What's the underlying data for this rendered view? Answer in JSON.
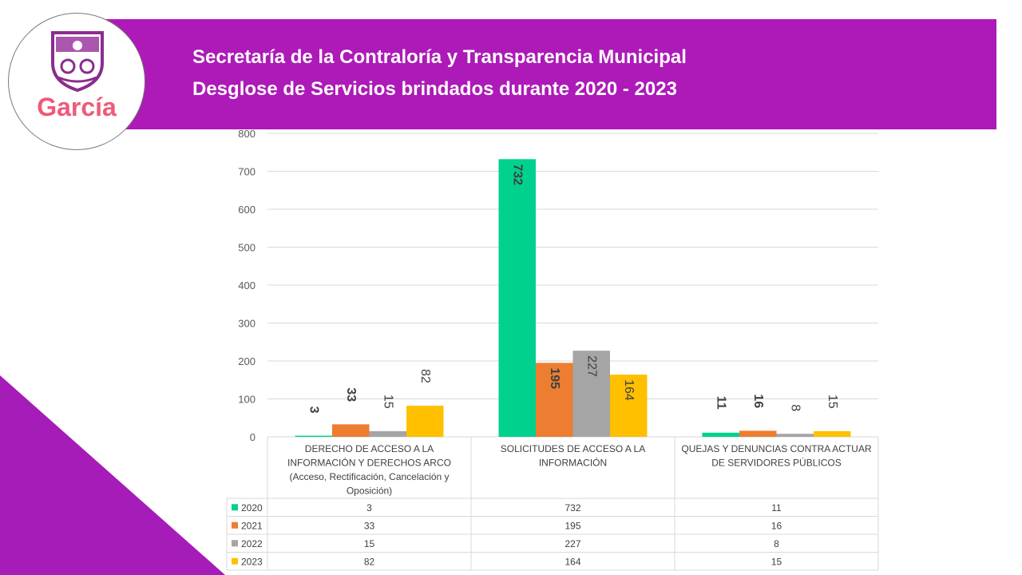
{
  "header": {
    "title_line1": "Secretaría de la Contraloría y Transparencia Municipal",
    "title_line2": "Desglose de Servicios brindados durante 2020 - 2023"
  },
  "logo": {
    "text": "García",
    "icon": "shield-crest-icon"
  },
  "colors": {
    "banner": "#ad1ab8",
    "corner": "#a51cb8",
    "series": [
      "#00d18f",
      "#ed7d31",
      "#a5a5a5",
      "#ffc000"
    ]
  },
  "chart_data": {
    "type": "bar",
    "title": "",
    "ylim": [
      0,
      800
    ],
    "yticks": [
      0,
      100,
      200,
      300,
      400,
      500,
      600,
      700,
      800
    ],
    "grid": true,
    "categories": [
      [
        "DERECHO DE ACCESO A LA",
        "INFORMACIÓN Y DERECHOS ARCO",
        "(Acceso, Rectificación, Cancelación y",
        "Oposición)"
      ],
      [
        "SOLICITUDES DE ACCESO A LA",
        "INFORMACIÓN"
      ],
      [
        "QUEJAS Y DENUNCIAS CONTRA ACTUAR",
        "DE SERVIDORES PÚBLICOS"
      ]
    ],
    "series": [
      {
        "name": "2020",
        "values": [
          3,
          732,
          11
        ],
        "bold": true
      },
      {
        "name": "2021",
        "values": [
          33,
          195,
          16
        ],
        "bold": true
      },
      {
        "name": "2022",
        "values": [
          15,
          227,
          8
        ],
        "bold": false
      },
      {
        "name": "2023",
        "values": [
          82,
          164,
          15
        ],
        "bold": false
      }
    ]
  }
}
